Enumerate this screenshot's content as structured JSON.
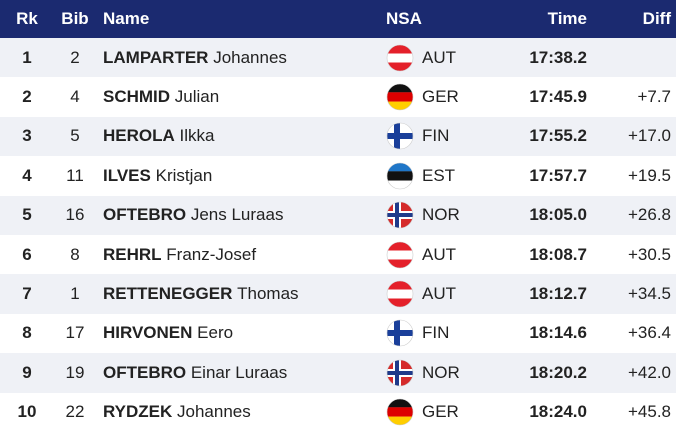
{
  "header": {
    "rk": "Rk",
    "bib": "Bib",
    "name": "Name",
    "nsa": "NSA",
    "time": "Time",
    "diff": "Diff"
  },
  "rows": [
    {
      "rk": 1,
      "bib": 2,
      "surname": "LAMPARTER",
      "given": "Johannes",
      "nsa": "AUT",
      "time": "17:38.2"
    },
    {
      "rk": 2,
      "bib": 4,
      "surname": "SCHMID",
      "given": "Julian",
      "nsa": "GER",
      "time": "17:45.9",
      "diff": "+7.7"
    },
    {
      "rk": 3,
      "bib": 5,
      "surname": "HEROLA",
      "given": "Ilkka",
      "nsa": "FIN",
      "time": "17:55.2",
      "diff": "+17.0"
    },
    {
      "rk": 4,
      "bib": 11,
      "surname": "ILVES",
      "given": "Kristjan",
      "nsa": "EST",
      "time": "17:57.7",
      "diff": "+19.5"
    },
    {
      "rk": 5,
      "bib": 16,
      "surname": "OFTEBRO",
      "given": "Jens Luraas",
      "nsa": "NOR",
      "time": "18:05.0",
      "diff": "+26.8"
    },
    {
      "rk": 6,
      "bib": 8,
      "surname": "REHRL",
      "given": "Franz-Josef",
      "nsa": "AUT",
      "time": "18:08.7",
      "diff": "+30.5"
    },
    {
      "rk": 7,
      "bib": 1,
      "surname": "RETTENEGGER",
      "given": "Thomas",
      "nsa": "AUT",
      "time": "18:12.7",
      "diff": "+34.5"
    },
    {
      "rk": 8,
      "bib": 17,
      "surname": "HIRVONEN",
      "given": "Eero",
      "nsa": "FIN",
      "time": "18:14.6",
      "diff": "+36.4"
    },
    {
      "rk": 9,
      "bib": 19,
      "surname": "OFTEBRO",
      "given": "Einar Luraas",
      "nsa": "NOR",
      "time": "18:20.2",
      "diff": "+42.0"
    },
    {
      "rk": 10,
      "bib": 22,
      "surname": "RYDZEK",
      "given": "Johannes",
      "nsa": "GER",
      "time": "18:24.0",
      "diff": "+45.8"
    }
  ]
}
